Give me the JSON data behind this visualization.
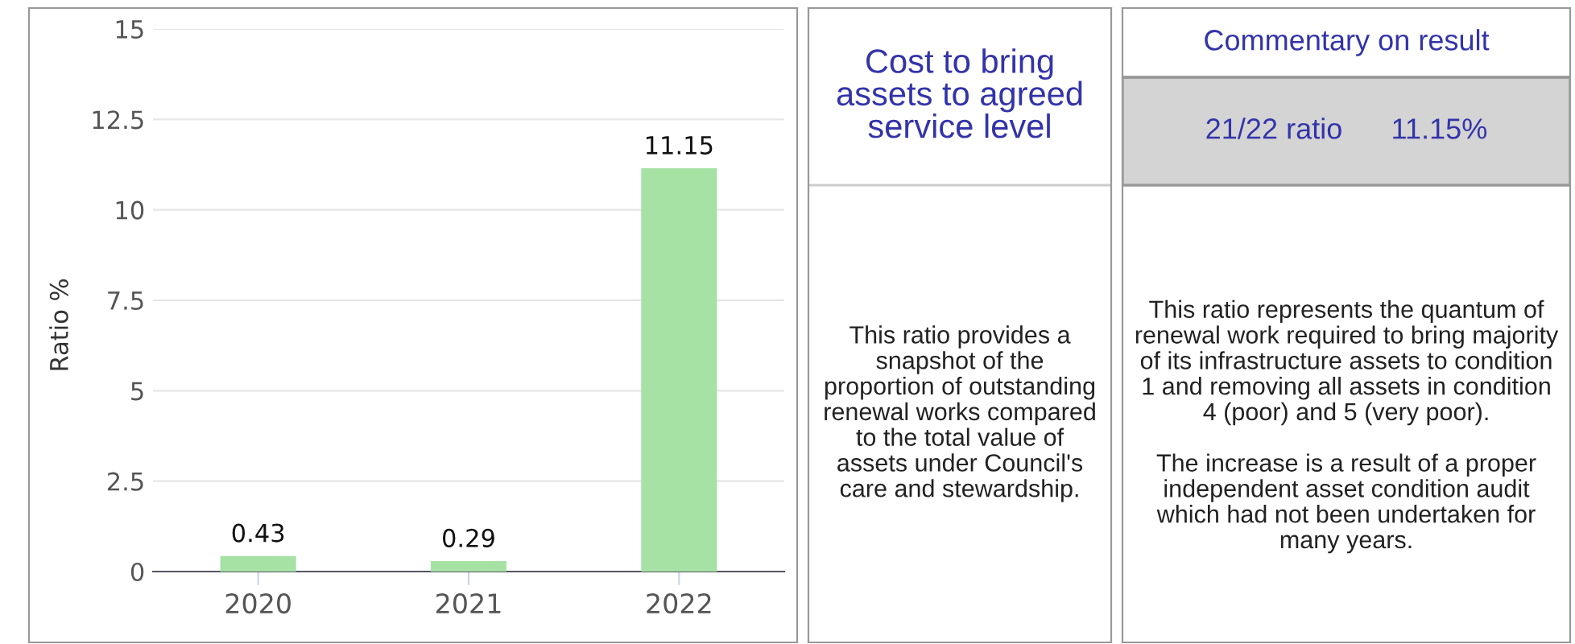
{
  "chart_data": [
    {
      "type": "bar",
      "ylabel": "Ratio %",
      "categories": [
        "2020",
        "2021",
        "2022"
      ],
      "values": [
        0.43,
        0.29,
        11.15
      ],
      "color": "#a6e2a4",
      "ylim": [
        0,
        15
      ],
      "yticks": [
        0,
        2.5,
        5,
        7.5,
        10,
        12.5,
        15
      ],
      "grid": "y",
      "data_labels": true
    },
    {
      "type": "other",
      "title": "Cost to bring assets to agreed service level",
      "annotations": [
        "This ratio provides a snapshot of the proportion of outstanding renewal works compared to the total value of assets under Council's care and stewardship."
      ]
    },
    {
      "type": "other",
      "title": "Commentary on result",
      "subtitle": "21/22 ratio      11.15%",
      "annotations": [
        "This ratio represents the quantum of renewal work required to bring majority of its infrastructure assets to condition 1 and removing all assets in condition 4 (poor) and 5 (very poor).",
        "The increase is a result of a proper independent asset condition audit which had not been undertaken for many years."
      ]
    }
  ]
}
